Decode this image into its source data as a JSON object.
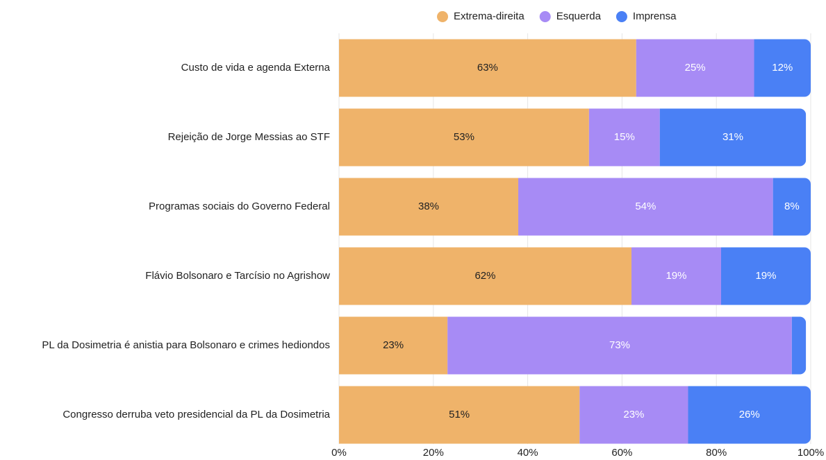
{
  "chart_data": {
    "type": "stacked-bar-horizontal",
    "categories": [
      "Custo de vida e agenda Externa",
      "Rejeição de Jorge Messias ao STF",
      "Programas sociais do Governo Federal",
      "Flávio Bolsonaro e Tarcísio no Agrishow",
      "PL da Dosimetria é anistia para Bolsonaro e crimes hediondos",
      "Congresso derruba veto presidencial da PL da Dosimetria"
    ],
    "series": [
      {
        "name": "Extrema-direita",
        "color": "#efb36a",
        "values": [
          63,
          53,
          38,
          62,
          23,
          51
        ],
        "value_labels": [
          "63%",
          "53%",
          "38%",
          "62%",
          "23%",
          "51%"
        ]
      },
      {
        "name": "Esquerda",
        "color": "#a78bf5",
        "values": [
          25,
          15,
          54,
          19,
          73,
          23
        ],
        "value_labels": [
          "25%",
          "15%",
          "54%",
          "19%",
          "73%",
          "23%"
        ]
      },
      {
        "name": "Imprensa",
        "color": "#4a80f5",
        "values": [
          12,
          31,
          8,
          19,
          3,
          26
        ],
        "value_labels": [
          "12%",
          "31%",
          "8%",
          "19%",
          null,
          "26%"
        ]
      }
    ],
    "xlim": [
      0,
      100
    ],
    "xticks": [
      {
        "value": 0,
        "label": "0%"
      },
      {
        "value": 20,
        "label": "20%"
      },
      {
        "value": 40,
        "label": "40%"
      },
      {
        "value": 60,
        "label": "60%"
      },
      {
        "value": 80,
        "label": "80%"
      },
      {
        "value": 100,
        "label": "100%"
      }
    ],
    "grid": true,
    "legend": "top"
  }
}
